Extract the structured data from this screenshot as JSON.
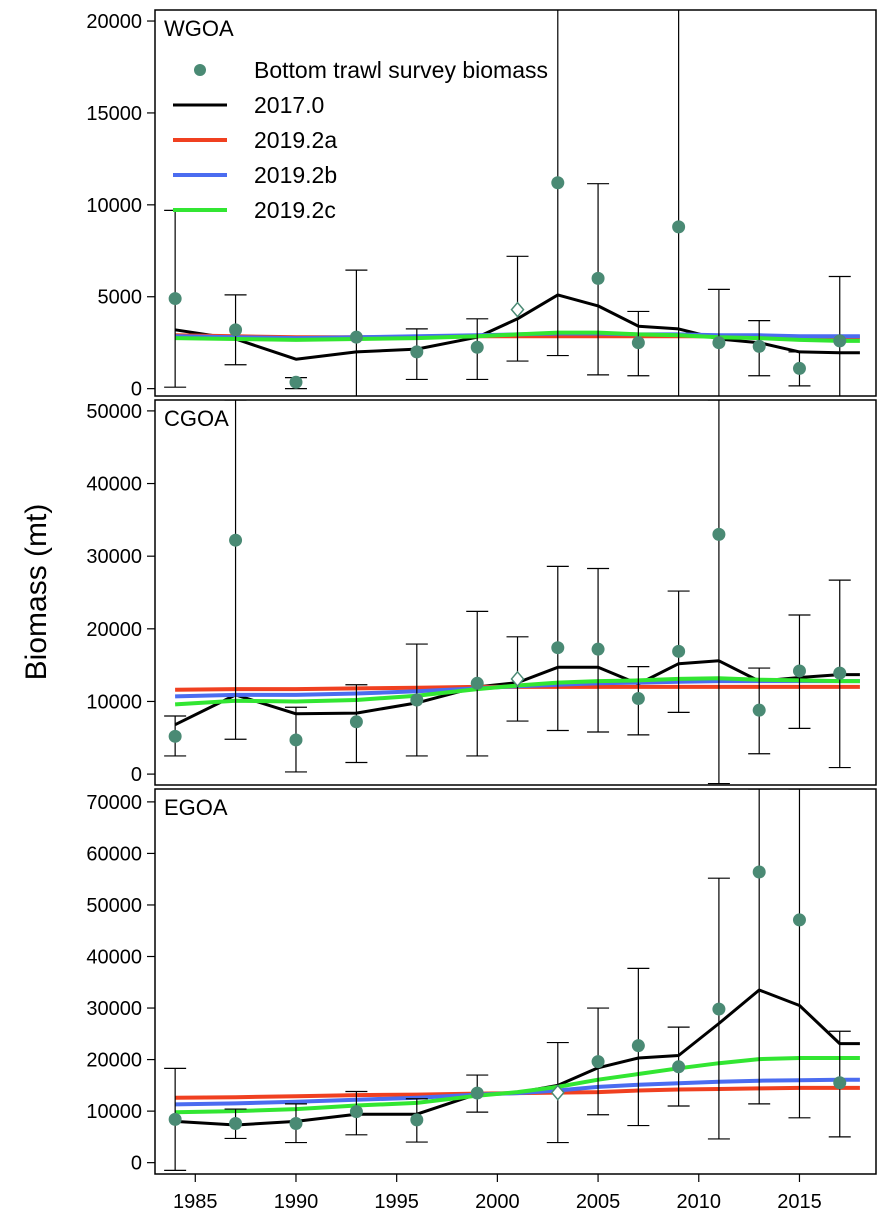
{
  "figure": {
    "ylabel": "Biomass (mt)"
  },
  "legend": {
    "survey_label": "Bottom trawl survey biomass",
    "placement": "top-left of first panel"
  },
  "colors": {
    "survey_point": "#4a8a74",
    "open_point_fill": "#ffffff",
    "error_bar": "#000000",
    "frame": "#000000"
  },
  "chart_data": [
    {
      "type": "line",
      "region": "WGOA",
      "ylim": [
        -400,
        20600
      ],
      "yticks": [
        0,
        5000,
        10000,
        15000,
        20000
      ],
      "xlim": [
        1983.0,
        2018.8
      ],
      "xticks": [
        1985,
        1990,
        1995,
        2000,
        2005,
        2010,
        2015
      ],
      "survey": [
        {
          "year": 1984,
          "value": 4900,
          "lo": 80,
          "hi": 9700
        },
        {
          "year": 1987,
          "value": 3200,
          "lo": 1300,
          "hi": 5100
        },
        {
          "year": 1990,
          "value": 350,
          "lo": 0,
          "hi": 600
        },
        {
          "year": 1993,
          "value": 2800,
          "lo": -900,
          "hi": 6450
        },
        {
          "year": 1996,
          "value": 2000,
          "lo": 500,
          "hi": 3250
        },
        {
          "year": 1999,
          "value": 2250,
          "lo": 500,
          "hi": 3800
        },
        {
          "year": 2001,
          "value": 4300,
          "lo": 1500,
          "hi": 7200,
          "open": true
        },
        {
          "year": 2003,
          "value": 11200,
          "lo": 1800,
          "hi": 20700
        },
        {
          "year": 2005,
          "value": 6000,
          "lo": 750,
          "hi": 11150
        },
        {
          "year": 2007,
          "value": 2500,
          "lo": 700,
          "hi": 4200
        },
        {
          "year": 2009,
          "value": 8800,
          "lo": -1100,
          "hi": 21000
        },
        {
          "year": 2011,
          "value": 2500,
          "lo": -600,
          "hi": 5400
        },
        {
          "year": 2013,
          "value": 2300,
          "lo": 700,
          "hi": 3700
        },
        {
          "year": 2015,
          "value": 1100,
          "lo": 150,
          "hi": 2000
        },
        {
          "year": 2017,
          "value": 2600,
          "lo": -900,
          "hi": 6100
        }
      ],
      "series": [
        {
          "name": "2017.0",
          "color": "#000000",
          "x": [
            1984,
            1987,
            1990,
            1993,
            1996,
            1999,
            2001,
            2003,
            2005,
            2007,
            2009,
            2011,
            2013,
            2015,
            2017,
            2018
          ],
          "values": [
            3200,
            2700,
            1600,
            2000,
            2150,
            2800,
            3800,
            5100,
            4500,
            3400,
            3250,
            2700,
            2500,
            2000,
            1950,
            1950
          ]
        },
        {
          "name": "2019.2a",
          "color": "#f04020",
          "x": [
            1984,
            1987,
            1990,
            1993,
            1996,
            1999,
            2001,
            2003,
            2005,
            2007,
            2009,
            2011,
            2013,
            2015,
            2017,
            2018
          ],
          "values": [
            2900,
            2850,
            2800,
            2800,
            2800,
            2850,
            2850,
            2850,
            2850,
            2850,
            2850,
            2850,
            2800,
            2800,
            2800,
            2800
          ]
        },
        {
          "name": "2019.2b",
          "color": "#4b6cf0",
          "x": [
            1984,
            1987,
            1990,
            1993,
            1996,
            1999,
            2001,
            2003,
            2005,
            2007,
            2009,
            2011,
            2013,
            2015,
            2017,
            2018
          ],
          "values": [
            2850,
            2800,
            2750,
            2800,
            2850,
            2900,
            2950,
            3000,
            3000,
            2950,
            2950,
            2900,
            2900,
            2850,
            2850,
            2850
          ]
        },
        {
          "name": "2019.2c",
          "color": "#32e632",
          "x": [
            1984,
            1987,
            1990,
            1993,
            1996,
            1999,
            2001,
            2003,
            2005,
            2007,
            2009,
            2011,
            2013,
            2015,
            2017,
            2018
          ],
          "values": [
            2750,
            2700,
            2650,
            2700,
            2750,
            2850,
            2950,
            3050,
            3050,
            2950,
            2900,
            2800,
            2750,
            2650,
            2600,
            2600
          ]
        }
      ]
    },
    {
      "type": "line",
      "region": "CGOA",
      "ylim": [
        -1500,
        51500
      ],
      "yticks": [
        0,
        10000,
        20000,
        30000,
        40000,
        50000
      ],
      "xlim": [
        1983.0,
        2018.8
      ],
      "xticks": [
        1985,
        1990,
        1995,
        2000,
        2005,
        2010,
        2015
      ],
      "survey": [
        {
          "year": 1984,
          "value": 5200,
          "lo": 2500,
          "hi": 8000
        },
        {
          "year": 1987,
          "value": 32200,
          "lo": 4800,
          "hi": 51500
        },
        {
          "year": 1990,
          "value": 4700,
          "lo": 300,
          "hi": 9200
        },
        {
          "year": 1993,
          "value": 7200,
          "lo": 1600,
          "hi": 12300
        },
        {
          "year": 1996,
          "value": 10200,
          "lo": 2500,
          "hi": 17900
        },
        {
          "year": 1999,
          "value": 12500,
          "lo": 2500,
          "hi": 22400
        },
        {
          "year": 2001,
          "value": 13100,
          "lo": 7300,
          "hi": 18900,
          "open": true
        },
        {
          "year": 2003,
          "value": 17400,
          "lo": 6000,
          "hi": 28600
        },
        {
          "year": 2005,
          "value": 17200,
          "lo": 5800,
          "hi": 28300
        },
        {
          "year": 2007,
          "value": 10400,
          "lo": 5400,
          "hi": 14800
        },
        {
          "year": 2009,
          "value": 16900,
          "lo": 8500,
          "hi": 25200
        },
        {
          "year": 2011,
          "value": 33000,
          "lo": -1300,
          "hi": 51500
        },
        {
          "year": 2013,
          "value": 8800,
          "lo": 2800,
          "hi": 14600
        },
        {
          "year": 2015,
          "value": 14200,
          "lo": 6300,
          "hi": 21900
        },
        {
          "year": 2017,
          "value": 13900,
          "lo": 900,
          "hi": 26700
        }
      ],
      "series": [
        {
          "name": "2017.0",
          "color": "#000000",
          "x": [
            1984,
            1987,
            1990,
            1993,
            1996,
            1999,
            2001,
            2003,
            2005,
            2007,
            2009,
            2011,
            2013,
            2015,
            2017,
            2018
          ],
          "values": [
            6800,
            10900,
            8300,
            8400,
            9800,
            12000,
            12600,
            14700,
            14700,
            12400,
            15200,
            15600,
            12800,
            13300,
            13700,
            13700
          ]
        },
        {
          "name": "2019.2a",
          "color": "#f04020",
          "x": [
            1984,
            1987,
            1990,
            1993,
            1996,
            1999,
            2001,
            2003,
            2005,
            2007,
            2009,
            2011,
            2013,
            2015,
            2017,
            2018
          ],
          "values": [
            11600,
            11700,
            11700,
            11800,
            11900,
            12000,
            12000,
            12000,
            12000,
            12000,
            12000,
            12000,
            12000,
            12000,
            12000,
            12000
          ]
        },
        {
          "name": "2019.2b",
          "color": "#4b6cf0",
          "x": [
            1984,
            1987,
            1990,
            1993,
            1996,
            1999,
            2001,
            2003,
            2005,
            2007,
            2009,
            2011,
            2013,
            2015,
            2017,
            2018
          ],
          "values": [
            10700,
            10900,
            10900,
            11100,
            11400,
            11800,
            12100,
            12300,
            12500,
            12600,
            12700,
            12800,
            12800,
            12800,
            12800,
            12800
          ]
        },
        {
          "name": "2019.2c",
          "color": "#32e632",
          "x": [
            1984,
            1987,
            1990,
            1993,
            1996,
            1999,
            2001,
            2003,
            2005,
            2007,
            2009,
            2011,
            2013,
            2015,
            2017,
            2018
          ],
          "values": [
            9600,
            10100,
            10000,
            10200,
            10800,
            11700,
            12200,
            12600,
            12800,
            12900,
            13100,
            13200,
            13000,
            12900,
            12800,
            12800
          ]
        }
      ]
    },
    {
      "type": "line",
      "region": "EGOA",
      "ylim": [
        -2200,
        72500
      ],
      "yticks": [
        0,
        10000,
        20000,
        30000,
        40000,
        50000,
        60000,
        70000
      ],
      "xlim": [
        1983.0,
        2018.8
      ],
      "xticks": [
        1985,
        1990,
        1995,
        2000,
        2005,
        2010,
        2015
      ],
      "survey": [
        {
          "year": 1984,
          "value": 8400,
          "lo": -1500,
          "hi": 18300
        },
        {
          "year": 1987,
          "value": 7600,
          "lo": 4700,
          "hi": 10400
        },
        {
          "year": 1990,
          "value": 7600,
          "lo": 3900,
          "hi": 11400
        },
        {
          "year": 1993,
          "value": 9900,
          "lo": 5400,
          "hi": 13800
        },
        {
          "year": 1996,
          "value": 8300,
          "lo": 4000,
          "hi": 12400
        },
        {
          "year": 1999,
          "value": 13500,
          "lo": 9800,
          "hi": 17000
        },
        {
          "year": 2003,
          "value": 13600,
          "lo": 3900,
          "hi": 23300,
          "open": true
        },
        {
          "year": 2005,
          "value": 19600,
          "lo": 9300,
          "hi": 30000
        },
        {
          "year": 2007,
          "value": 22700,
          "lo": 7200,
          "hi": 37700
        },
        {
          "year": 2009,
          "value": 18600,
          "lo": 11000,
          "hi": 26300
        },
        {
          "year": 2011,
          "value": 29800,
          "lo": 4600,
          "hi": 55200
        },
        {
          "year": 2013,
          "value": 56400,
          "lo": 11400,
          "hi": 72500
        },
        {
          "year": 2015,
          "value": 47100,
          "lo": 8700,
          "hi": 72500
        },
        {
          "year": 2017,
          "value": 15500,
          "lo": 5000,
          "hi": 25500
        }
      ],
      "series": [
        {
          "name": "2017.0",
          "color": "#000000",
          "x": [
            1984,
            1987,
            1990,
            1993,
            1996,
            1999,
            2001,
            2003,
            2005,
            2007,
            2009,
            2011,
            2013,
            2015,
            2017,
            2018
          ],
          "values": [
            8000,
            7300,
            8000,
            9400,
            9400,
            13300,
            13600,
            15000,
            18400,
            20300,
            20800,
            27000,
            33500,
            30500,
            23100,
            23100
          ]
        },
        {
          "name": "2019.2a",
          "color": "#f04020",
          "x": [
            1984,
            1987,
            1990,
            1993,
            1996,
            1999,
            2001,
            2003,
            2005,
            2007,
            2009,
            2011,
            2013,
            2015,
            2017,
            2018
          ],
          "values": [
            12600,
            12700,
            12900,
            13100,
            13200,
            13400,
            13500,
            13600,
            13700,
            14000,
            14200,
            14300,
            14400,
            14500,
            14500,
            14500
          ]
        },
        {
          "name": "2019.2b",
          "color": "#4b6cf0",
          "x": [
            1984,
            1987,
            1990,
            1993,
            1996,
            1999,
            2001,
            2003,
            2005,
            2007,
            2009,
            2011,
            2013,
            2015,
            2017,
            2018
          ],
          "values": [
            11300,
            11500,
            11800,
            12200,
            12600,
            13200,
            13500,
            14000,
            14700,
            15100,
            15400,
            15700,
            15900,
            16000,
            16100,
            16100
          ]
        },
        {
          "name": "2019.2c",
          "color": "#32e632",
          "x": [
            1984,
            1987,
            1990,
            1993,
            1996,
            1999,
            2001,
            2003,
            2005,
            2007,
            2009,
            2011,
            2013,
            2015,
            2017,
            2018
          ],
          "values": [
            9800,
            10000,
            10400,
            11100,
            11600,
            13000,
            13700,
            14700,
            16100,
            17200,
            18300,
            19300,
            20100,
            20300,
            20300,
            20300
          ]
        }
      ]
    }
  ]
}
